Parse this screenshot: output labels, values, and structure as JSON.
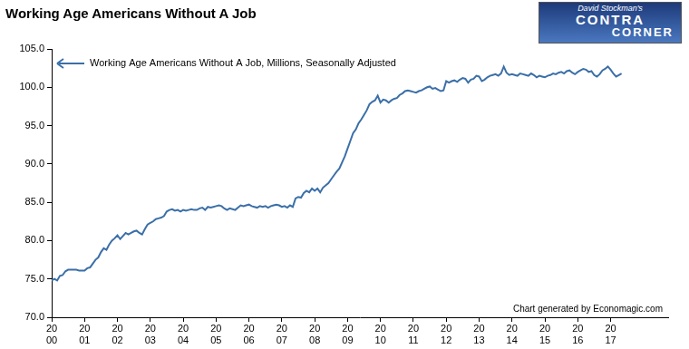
{
  "chart_data": {
    "type": "line",
    "title": "Working Age Americans Without A Job",
    "logo": [
      "David Stockman's",
      "CONTRA",
      "CORNER"
    ],
    "annotations": [
      "Chart generated by Economagic.com"
    ],
    "legend": "upper left",
    "grid": false,
    "categories": [
      "2000",
      null,
      null,
      null,
      null,
      null,
      null,
      null,
      null,
      null,
      null,
      null,
      "2001",
      null,
      null,
      null,
      null,
      null,
      null,
      null,
      null,
      null,
      null,
      null,
      "2002",
      null,
      null,
      null,
      null,
      null,
      null,
      null,
      null,
      null,
      null,
      null,
      "2003",
      null,
      null,
      null,
      null,
      null,
      null,
      null,
      null,
      null,
      null,
      null,
      "2004",
      null,
      null,
      null,
      null,
      null,
      null,
      null,
      null,
      null,
      null,
      null,
      "2005",
      null,
      null,
      null,
      null,
      null,
      null,
      null,
      null,
      null,
      null,
      null,
      "2006",
      null,
      null,
      null,
      null,
      null,
      null,
      null,
      null,
      null,
      null,
      null,
      "2007",
      null,
      null,
      null,
      null,
      null,
      null,
      null,
      null,
      null,
      null,
      null,
      "2008",
      null,
      null,
      null,
      null,
      null,
      null,
      null,
      null,
      null,
      null,
      null,
      "2009",
      null,
      null,
      null,
      null,
      null,
      null,
      null,
      null,
      null,
      null,
      null,
      "2010",
      null,
      null,
      null,
      null,
      null,
      null,
      null,
      null,
      null,
      null,
      null,
      "2011",
      null,
      null,
      null,
      null,
      null,
      null,
      null,
      null,
      null,
      null,
      null,
      "2012",
      null,
      null,
      null,
      null,
      null,
      null,
      null,
      null,
      null,
      null,
      null,
      "2013",
      null,
      null,
      null,
      null,
      null,
      null,
      null,
      null,
      null,
      null,
      null,
      "2014",
      null,
      null,
      null,
      null,
      null,
      null,
      null,
      null,
      null,
      null,
      null,
      "2015",
      null,
      null,
      null,
      null,
      null,
      null,
      null,
      null,
      null,
      null,
      null,
      "2016",
      null,
      null,
      null,
      null,
      null,
      null,
      null,
      null,
      null,
      null,
      null,
      "2017",
      null,
      null,
      null,
      null,
      null,
      null,
      null,
      null,
      null,
      null,
      null,
      null,
      null,
      null,
      null,
      null,
      null,
      null,
      null,
      null,
      null
    ],
    "series": [
      {
        "name": "Working Age Americans Without A Job, Millions, Seasonally Adjusted",
        "color": "#3b6fa8",
        "values": [
          74.8,
          75.0,
          74.8,
          75.4,
          75.5,
          76.0,
          76.2,
          76.2,
          76.2,
          76.2,
          76.1,
          76.1,
          76.1,
          76.4,
          76.5,
          77.0,
          77.5,
          77.8,
          78.5,
          79.0,
          78.8,
          79.5,
          80.0,
          80.3,
          80.7,
          80.2,
          80.6,
          81.0,
          80.8,
          81.0,
          81.2,
          81.3,
          81.0,
          80.8,
          81.5,
          82.1,
          82.3,
          82.5,
          82.8,
          82.9,
          83.0,
          83.2,
          83.8,
          84.0,
          84.1,
          83.9,
          84.0,
          83.8,
          84.0,
          83.9,
          84.0,
          84.1,
          84.0,
          84.0,
          84.2,
          84.3,
          84.0,
          84.4,
          84.3,
          84.4,
          84.5,
          84.6,
          84.5,
          84.2,
          84.0,
          84.2,
          84.1,
          84.0,
          84.3,
          84.6,
          84.5,
          84.6,
          84.7,
          84.5,
          84.4,
          84.3,
          84.5,
          84.4,
          84.5,
          84.3,
          84.5,
          84.6,
          84.7,
          84.6,
          84.4,
          84.5,
          84.3,
          84.6,
          84.4,
          85.5,
          85.7,
          85.6,
          86.2,
          86.5,
          86.3,
          86.8,
          86.5,
          86.8,
          86.3,
          86.9,
          87.2,
          87.5,
          88.0,
          88.5,
          89.0,
          89.4,
          90.2,
          91.0,
          92.0,
          93.0,
          94.0,
          94.5,
          95.3,
          95.8,
          96.4,
          97.0,
          97.8,
          98.1,
          98.3,
          98.9,
          98.0,
          98.4,
          98.3,
          98.0,
          98.3,
          98.5,
          98.6,
          99.0,
          99.2,
          99.5,
          99.6,
          99.5,
          99.4,
          99.3,
          99.5,
          99.6,
          99.8,
          100.0,
          100.1,
          99.8,
          99.9,
          99.7,
          99.5,
          99.6,
          100.8,
          100.6,
          100.8,
          100.9,
          100.7,
          101.0,
          101.2,
          101.1,
          100.6,
          101.0,
          101.1,
          101.5,
          101.4,
          100.8,
          101.0,
          101.3,
          101.5,
          101.6,
          101.7,
          101.5,
          101.8,
          102.7,
          101.9,
          101.6,
          101.7,
          101.6,
          101.5,
          101.8,
          101.7,
          101.6,
          101.5,
          101.8,
          101.6,
          101.3,
          101.5,
          101.4,
          101.3,
          101.5,
          101.6,
          101.8,
          101.7,
          101.9,
          102.0,
          101.8,
          102.1,
          102.2,
          101.9,
          101.7,
          102.0,
          102.2,
          102.4,
          102.3,
          102.0,
          102.1,
          101.6,
          101.4,
          101.7,
          102.2,
          102.4,
          102.7,
          102.3,
          101.8,
          101.4,
          101.6,
          101.8,
          null,
          null,
          null,
          null,
          null,
          null,
          null,
          null,
          null,
          null,
          null,
          null,
          null,
          null,
          null,
          null,
          null
        ]
      }
    ],
    "ylim": [
      70,
      105
    ],
    "yticks": [
      {
        "value": 70,
        "label": "70.0"
      },
      {
        "value": 75,
        "label": "75.0"
      },
      {
        "value": 80,
        "label": "80.0"
      },
      {
        "value": 85,
        "label": "85.0"
      },
      {
        "value": 90,
        "label": "90.0"
      },
      {
        "value": 95,
        "label": "95.0"
      },
      {
        "value": 100,
        "label": "100.0"
      },
      {
        "value": 105,
        "label": "105.0"
      }
    ]
  }
}
